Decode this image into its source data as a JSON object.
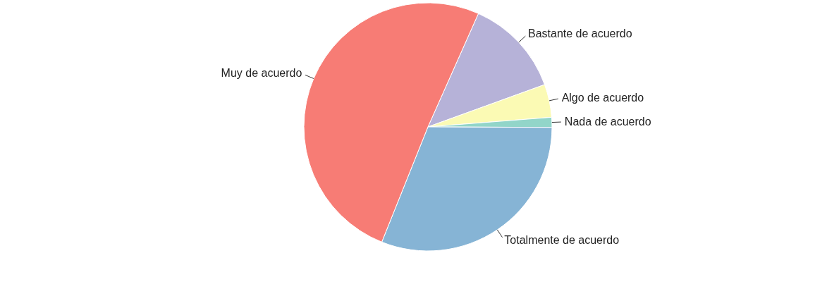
{
  "chart_data": {
    "type": "pie",
    "categories": [
      "Bastante de acuerdo",
      "Algo de acuerdo",
      "Nada de acuerdo",
      "Totalmente de acuerdo",
      "Muy de acuerdo"
    ],
    "values": [
      12.8,
      4.3,
      1.3,
      31.0,
      50.6
    ],
    "colors": [
      "#b3aed6",
      "#fbfab0",
      "#8dd3c7",
      "#80b1d3",
      "#f7766e"
    ]
  }
}
